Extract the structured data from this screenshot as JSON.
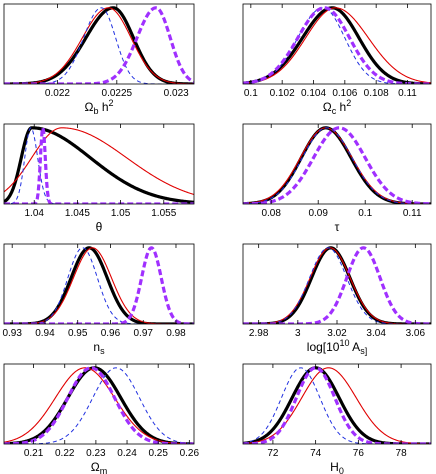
{
  "chart_data": [
    {
      "type": "line",
      "panel": "omega_b",
      "xlabel": "Ω_b h^2",
      "xlim": [
        0.02155,
        0.02315
      ],
      "ylim": [
        0,
        1.05
      ],
      "xticks": [
        0.022,
        0.0225,
        0.023
      ],
      "xtick_labels": [
        "0.022",
        "0.0225",
        "0.023"
      ],
      "grid": false,
      "legend": "none",
      "series": [
        {
          "style": "black-thick",
          "color": "#000000",
          "peak": 0.02247,
          "sigma_left": 0.00023,
          "sigma_right": 0.00017
        },
        {
          "style": "red-thin",
          "color": "#e00000",
          "peak": 0.02243,
          "sigma_left": 0.00022,
          "sigma_right": 0.00019
        },
        {
          "style": "blue-dashed",
          "color": "#2030e0",
          "peak": 0.02237,
          "sigma_left": 0.00015,
          "sigma_right": 0.00012
        },
        {
          "style": "magenta-dashed-thick",
          "color": "#a030ff",
          "peak": 0.02283,
          "sigma_left": 0.00016,
          "sigma_right": 0.00012
        }
      ]
    },
    {
      "type": "line",
      "panel": "omega_c",
      "xlabel": "Ω_c h^2",
      "xlim": [
        0.0995,
        0.1115
      ],
      "ylim": [
        0,
        1.05
      ],
      "xticks": [
        0.1,
        0.102,
        0.104,
        0.106,
        0.108,
        0.11
      ],
      "xtick_labels": [
        "0.1",
        "0.102",
        "0.104",
        "0.106",
        "0.108",
        "0.11"
      ],
      "grid": false,
      "legend": "none",
      "series": [
        {
          "style": "black-thick",
          "color": "#000000",
          "peak": 0.1052,
          "sigma_left": 0.0019,
          "sigma_right": 0.0017
        },
        {
          "style": "red-thin",
          "color": "#e00000",
          "peak": 0.1054,
          "sigma_left": 0.0019,
          "sigma_right": 0.0021
        },
        {
          "style": "blue-dashed",
          "color": "#2030e0",
          "peak": 0.1046,
          "sigma_left": 0.0016,
          "sigma_right": 0.0014
        },
        {
          "style": "magenta-dashed-thick",
          "color": "#a030ff",
          "peak": 0.1047,
          "sigma_left": 0.0017,
          "sigma_right": 0.0016
        }
      ]
    },
    {
      "type": "line",
      "panel": "theta",
      "xlabel": "θ",
      "xlim": [
        1.0365,
        1.0585
      ],
      "ylim": [
        0,
        1.05
      ],
      "xticks": [
        1.04,
        1.045,
        1.05,
        1.055
      ],
      "xtick_labels": [
        "1.04",
        "1.045",
        "1.05",
        "1.055"
      ],
      "grid": false,
      "legend": "none",
      "series": [
        {
          "style": "black-thick",
          "color": "#000000",
          "peak": 1.0397,
          "sigma_left": 0.0012,
          "sigma_right": 0.0068
        },
        {
          "style": "red-thin",
          "color": "#e00000",
          "peak": 1.0432,
          "sigma_left": 0.0035,
          "sigma_right": 0.0075
        },
        {
          "style": "blue-dashed",
          "color": "#2030e0",
          "peak": 1.0396,
          "sigma_left": 0.0007,
          "sigma_right": 0.0008
        },
        {
          "style": "magenta-dashed-thick",
          "color": "#a030ff",
          "peak": 1.041,
          "sigma_left": 0.00028,
          "sigma_right": 0.00028
        }
      ]
    },
    {
      "type": "line",
      "panel": "tau",
      "xlabel": "τ",
      "xlim": [
        0.074,
        0.114
      ],
      "ylim": [
        0,
        1.05
      ],
      "xticks": [
        0.08,
        0.09,
        0.1,
        0.11
      ],
      "xtick_labels": [
        "0.08",
        "0.09",
        "0.1",
        "0.11"
      ],
      "grid": false,
      "legend": "none",
      "series": [
        {
          "style": "black-thick",
          "color": "#000000",
          "peak": 0.0916,
          "sigma_left": 0.0052,
          "sigma_right": 0.0054
        },
        {
          "style": "red-thin",
          "color": "#e00000",
          "peak": 0.0916,
          "sigma_left": 0.0054,
          "sigma_right": 0.0056
        },
        {
          "style": "blue-dashed",
          "color": "#2030e0",
          "peak": 0.0918,
          "sigma_left": 0.0052,
          "sigma_right": 0.0054
        },
        {
          "style": "magenta-dashed-thick",
          "color": "#a030ff",
          "peak": 0.0945,
          "sigma_left": 0.0055,
          "sigma_right": 0.0055
        }
      ]
    },
    {
      "type": "line",
      "panel": "n_s",
      "xlabel": "n_s",
      "xlim": [
        0.9275,
        0.9855
      ],
      "ylim": [
        0,
        1.05
      ],
      "xticks": [
        0.93,
        0.94,
        0.95,
        0.96,
        0.97,
        0.98
      ],
      "xtick_labels": [
        "0.93",
        "0.94",
        "0.95",
        "0.96",
        "0.97",
        "0.98"
      ],
      "grid": false,
      "legend": "none",
      "series": [
        {
          "style": "black-thick",
          "color": "#000000",
          "peak": 0.9535,
          "sigma_left": 0.0055,
          "sigma_right": 0.0055
        },
        {
          "style": "red-thin",
          "color": "#e00000",
          "peak": 0.9545,
          "sigma_left": 0.0058,
          "sigma_right": 0.0058
        },
        {
          "style": "blue-dashed",
          "color": "#2030e0",
          "peak": 0.9515,
          "sigma_left": 0.0045,
          "sigma_right": 0.0045
        },
        {
          "style": "magenta-dashed-thick",
          "color": "#a030ff",
          "peak": 0.9725,
          "sigma_left": 0.003,
          "sigma_right": 0.003
        }
      ]
    },
    {
      "type": "line",
      "panel": "log_A_s",
      "xlabel": "log[10^10 A_s]",
      "xlim": [
        2.972,
        3.068
      ],
      "ylim": [
        0,
        1.05
      ],
      "xticks": [
        2.98,
        3.0,
        3.02,
        3.04,
        3.06
      ],
      "xtick_labels": [
        "2.98",
        "3",
        "3.02",
        "3.04",
        "3.06"
      ],
      "grid": false,
      "legend": "none",
      "series": [
        {
          "style": "black-thick",
          "color": "#000000",
          "peak": 3.0168,
          "sigma_left": 0.0098,
          "sigma_right": 0.0098
        },
        {
          "style": "red-thin",
          "color": "#e00000",
          "peak": 3.0165,
          "sigma_left": 0.0102,
          "sigma_right": 0.0102
        },
        {
          "style": "blue-dashed",
          "color": "#2030e0",
          "peak": 3.0155,
          "sigma_left": 0.0095,
          "sigma_right": 0.0095
        },
        {
          "style": "magenta-dashed-thick",
          "color": "#a030ff",
          "peak": 3.0335,
          "sigma_left": 0.0085,
          "sigma_right": 0.0085
        }
      ]
    },
    {
      "type": "line",
      "panel": "omega_m",
      "xlabel": "Ω_m",
      "xlim": [
        0.2005,
        0.2615
      ],
      "ylim": [
        0,
        1.05
      ],
      "xticks": [
        0.21,
        0.22,
        0.23,
        0.24,
        0.25,
        0.26
      ],
      "xtick_labels": [
        "0.21",
        "0.22",
        "0.23",
        "0.24",
        "0.25",
        "0.26"
      ],
      "grid": false,
      "legend": "none",
      "series": [
        {
          "style": "black-thick",
          "color": "#000000",
          "peak": 0.2295,
          "sigma_left": 0.0085,
          "sigma_right": 0.0085
        },
        {
          "style": "red-thin",
          "color": "#e00000",
          "peak": 0.2265,
          "sigma_left": 0.0095,
          "sigma_right": 0.0095
        },
        {
          "style": "blue-dashed",
          "color": "#2030e0",
          "peak": 0.2365,
          "sigma_left": 0.0075,
          "sigma_right": 0.0075
        },
        {
          "style": "magenta-dashed-thick",
          "color": "#a030ff",
          "peak": 0.2285,
          "sigma_left": 0.0075,
          "sigma_right": 0.0075
        }
      ]
    },
    {
      "type": "line",
      "panel": "H_0",
      "xlabel": "H_0",
      "xlim": [
        70.6,
        79.4
      ],
      "ylim": [
        0,
        1.05
      ],
      "xticks": [
        72,
        74,
        76,
        78
      ],
      "xtick_labels": [
        "72",
        "74",
        "76",
        "78"
      ],
      "grid": false,
      "legend": "none",
      "series": [
        {
          "style": "black-thick",
          "color": "#000000",
          "peak": 74.0,
          "sigma_left": 1.1,
          "sigma_right": 1.1
        },
        {
          "style": "red-thin",
          "color": "#e00000",
          "peak": 74.6,
          "sigma_left": 1.25,
          "sigma_right": 1.3
        },
        {
          "style": "blue-dashed",
          "color": "#2030e0",
          "peak": 73.3,
          "sigma_left": 0.9,
          "sigma_right": 0.9
        },
        {
          "style": "magenta-dashed-thick",
          "color": "#a030ff",
          "peak": 74.0,
          "sigma_left": 0.9,
          "sigma_right": 0.9
        }
      ]
    }
  ]
}
